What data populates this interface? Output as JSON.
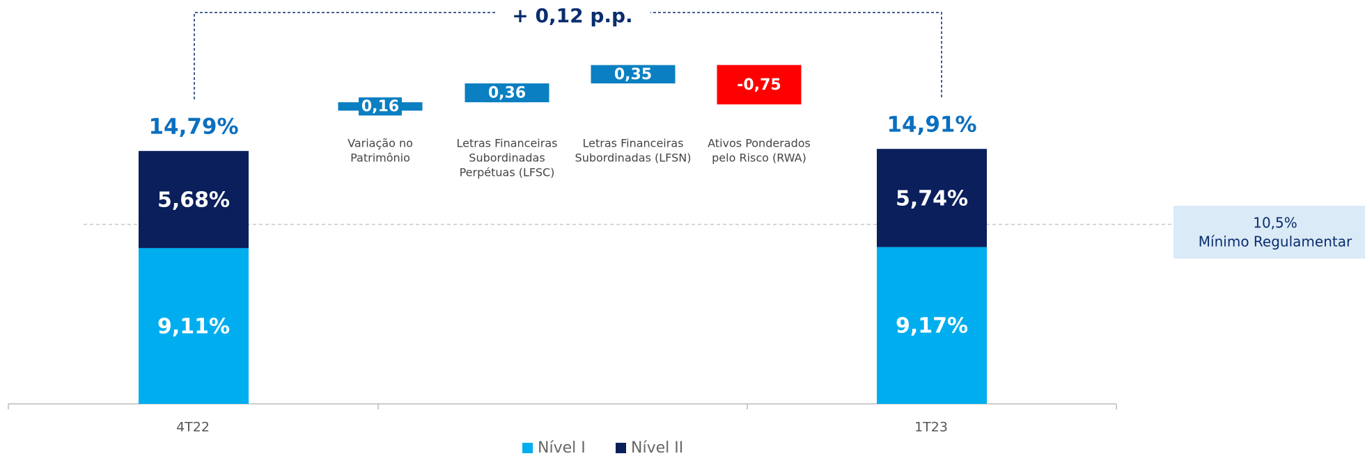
{
  "chart_data": {
    "type": "waterfall",
    "annotation": "+ 0,12 p.p.",
    "categories": [
      "4T22",
      "1T23"
    ],
    "series": [
      {
        "name": "Nível I",
        "color": "#00aeef",
        "values": [
          9.11,
          9.17
        ],
        "value_labels": [
          "9,11%",
          "9,17%"
        ]
      },
      {
        "name": "Nível II",
        "color": "#0a1f5c",
        "values": [
          5.68,
          5.74
        ],
        "value_labels": [
          "5,68%",
          "5,74%"
        ]
      }
    ],
    "totals": {
      "values": [
        14.79,
        14.91
      ],
      "value_labels": [
        "14,79%",
        "14,91%"
      ]
    },
    "steps": [
      {
        "label": [
          "Variação no",
          "Patrimônio"
        ],
        "value": 0.16,
        "value_label": "0,16"
      },
      {
        "label": [
          "Letras Financeiras",
          "Subordinadas",
          "Perpétuas (LFSC)"
        ],
        "value": 0.36,
        "value_label": "0,36"
      },
      {
        "label": [
          "Letras Financeiras",
          "Subordinadas (LFSN)"
        ],
        "value": 0.35,
        "value_label": "0,35"
      },
      {
        "label": [
          "Ativos Ponderados",
          "pelo Risco (RWA)"
        ],
        "value": -0.75,
        "value_label": "-0,75"
      }
    ],
    "colors": {
      "increase": "#0a7fc1",
      "decrease": "#ff0000"
    },
    "reference": {
      "value": 10.5,
      "label": "10,5%",
      "text": "Mínimo Regulamentar"
    },
    "ylim": [
      0,
      15
    ],
    "y2lim": [
      14.5,
      16
    ]
  }
}
